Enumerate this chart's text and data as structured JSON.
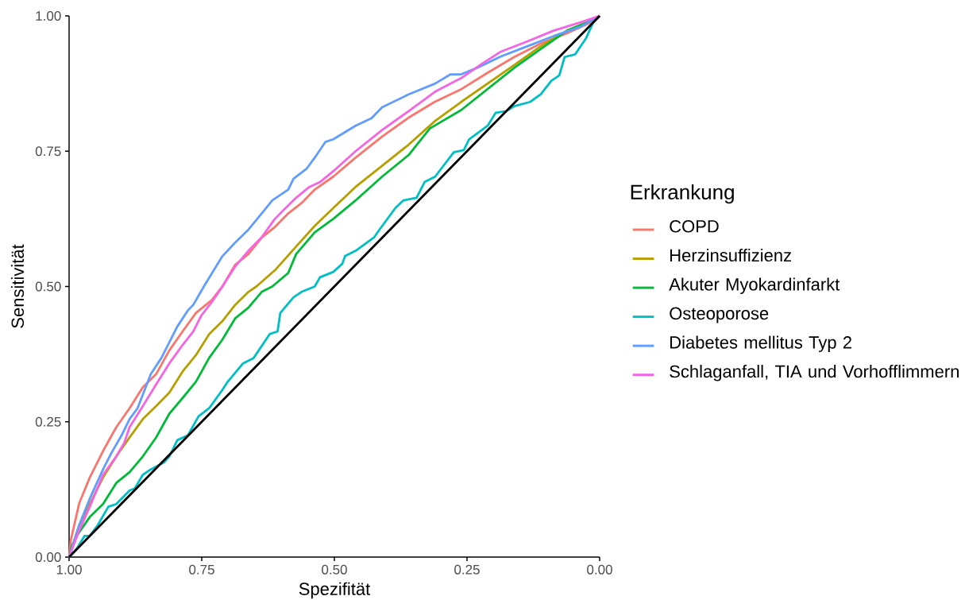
{
  "chart_data": {
    "type": "line",
    "xlabel": "Spezifität",
    "ylabel": "Sensitivität",
    "legend_title": "Erkrankung",
    "legend": "right",
    "xlim": [
      1,
      0
    ],
    "ylim": [
      0,
      1
    ],
    "xticks": [
      {
        "value": 1,
        "label": "1.00"
      },
      0.75,
      {
        "value": 0.5,
        "label": "0.50"
      },
      0.25,
      {
        "value": 0,
        "label": "0.00"
      }
    ],
    "yticks": [
      {
        "value": 0,
        "label": "0.00"
      },
      0.25,
      {
        "value": 0.5,
        "label": "0.50"
      },
      0.75,
      {
        "value": 1,
        "label": "1.00"
      }
    ],
    "series": [
      {
        "name": "COPD",
        "color": "#f8766d",
        "x": [
          1.0,
          0.997,
          0.981,
          0.961,
          0.936,
          0.911,
          0.886,
          0.861,
          0.836,
          0.811,
          0.786,
          0.761,
          0.731,
          0.711,
          0.687,
          0.662,
          0.637,
          0.612,
          0.587,
          0.562,
          0.537,
          0.502,
          0.46,
          0.41,
          0.36,
          0.311,
          0.26,
          0.211,
          0.161,
          0.111,
          0.061,
          0.012,
          0
        ],
        "values": [
          0,
          0.03,
          0.099,
          0.147,
          0.196,
          0.24,
          0.275,
          0.314,
          0.338,
          0.382,
          0.417,
          0.451,
          0.475,
          0.5,
          0.54,
          0.56,
          0.59,
          0.61,
          0.635,
          0.654,
          0.679,
          0.703,
          0.738,
          0.777,
          0.812,
          0.841,
          0.865,
          0.895,
          0.924,
          0.949,
          0.968,
          0.99,
          1
        ]
      },
      {
        "name": "Herzinsuffizienz",
        "color": "#b79f00",
        "x": [
          1.0,
          0.981,
          0.961,
          0.936,
          0.911,
          0.886,
          0.861,
          0.836,
          0.811,
          0.786,
          0.761,
          0.736,
          0.711,
          0.687,
          0.662,
          0.647,
          0.612,
          0.572,
          0.537,
          0.502,
          0.46,
          0.41,
          0.36,
          0.31,
          0.261,
          0.211,
          0.161,
          0.111,
          0.061,
          0.011,
          0
        ],
        "values": [
          0,
          0.059,
          0.098,
          0.147,
          0.186,
          0.221,
          0.255,
          0.279,
          0.304,
          0.343,
          0.373,
          0.412,
          0.436,
          0.466,
          0.49,
          0.5,
          0.53,
          0.574,
          0.612,
          0.645,
          0.684,
          0.723,
          0.762,
          0.806,
          0.841,
          0.875,
          0.909,
          0.944,
          0.973,
          0.993,
          1
        ]
      },
      {
        "name": "Akuter Myokardinfarkt",
        "color": "#00ba38",
        "x": [
          1.0,
          0.995,
          0.986,
          0.961,
          0.936,
          0.911,
          0.886,
          0.861,
          0.836,
          0.811,
          0.786,
          0.761,
          0.736,
          0.711,
          0.687,
          0.662,
          0.637,
          0.617,
          0.587,
          0.572,
          0.537,
          0.502,
          0.46,
          0.41,
          0.36,
          0.32,
          0.261,
          0.211,
          0.161,
          0.111,
          0.061,
          0.011,
          0
        ],
        "values": [
          0,
          0.02,
          0.039,
          0.074,
          0.098,
          0.137,
          0.157,
          0.186,
          0.221,
          0.265,
          0.294,
          0.324,
          0.368,
          0.402,
          0.441,
          0.461,
          0.49,
          0.5,
          0.525,
          0.56,
          0.6,
          0.625,
          0.659,
          0.703,
          0.743,
          0.792,
          0.826,
          0.865,
          0.904,
          0.939,
          0.973,
          0.993,
          1
        ]
      },
      {
        "name": "Osteoporose",
        "color": "#00bfc4",
        "x": [
          1.0,
          0.986,
          0.971,
          0.961,
          0.946,
          0.926,
          0.911,
          0.886,
          0.876,
          0.861,
          0.846,
          0.821,
          0.811,
          0.796,
          0.776,
          0.756,
          0.736,
          0.711,
          0.701,
          0.672,
          0.652,
          0.622,
          0.607,
          0.602,
          0.577,
          0.562,
          0.537,
          0.527,
          0.502,
          0.485,
          0.48,
          0.46,
          0.425,
          0.415,
          0.385,
          0.37,
          0.345,
          0.33,
          0.31,
          0.275,
          0.256,
          0.246,
          0.211,
          0.196,
          0.176,
          0.161,
          0.131,
          0.111,
          0.091,
          0.076,
          0.066,
          0.046,
          0.026,
          0.012,
          0
        ],
        "values": [
          0,
          0.015,
          0.039,
          0.039,
          0.059,
          0.093,
          0.098,
          0.123,
          0.127,
          0.152,
          0.162,
          0.175,
          0.186,
          0.216,
          0.225,
          0.26,
          0.275,
          0.309,
          0.324,
          0.358,
          0.368,
          0.412,
          0.417,
          0.451,
          0.48,
          0.49,
          0.5,
          0.517,
          0.527,
          0.542,
          0.556,
          0.566,
          0.591,
          0.605,
          0.645,
          0.659,
          0.664,
          0.693,
          0.703,
          0.748,
          0.752,
          0.772,
          0.797,
          0.821,
          0.824,
          0.833,
          0.841,
          0.855,
          0.88,
          0.89,
          0.924,
          0.929,
          0.958,
          0.988,
          1
        ]
      },
      {
        "name": "Diabetes mellitus  Typ 2",
        "color": "#619cff",
        "x": [
          1.0,
          0.981,
          0.961,
          0.936,
          0.921,
          0.901,
          0.886,
          0.871,
          0.846,
          0.826,
          0.811,
          0.796,
          0.776,
          0.766,
          0.746,
          0.711,
          0.687,
          0.662,
          0.637,
          0.617,
          0.587,
          0.577,
          0.552,
          0.537,
          0.517,
          0.502,
          0.46,
          0.43,
          0.41,
          0.36,
          0.31,
          0.281,
          0.261,
          0.231,
          0.186,
          0.136,
          0.086,
          0.036,
          0
        ],
        "values": [
          0,
          0.059,
          0.108,
          0.162,
          0.191,
          0.225,
          0.255,
          0.275,
          0.338,
          0.368,
          0.397,
          0.426,
          0.456,
          0.466,
          0.5,
          0.556,
          0.581,
          0.605,
          0.635,
          0.659,
          0.679,
          0.699,
          0.718,
          0.738,
          0.767,
          0.772,
          0.797,
          0.811,
          0.831,
          0.855,
          0.875,
          0.892,
          0.892,
          0.904,
          0.925,
          0.944,
          0.963,
          0.98,
          1
        ]
      },
      {
        "name": "Schlaganfall, TIA und Vorhofflimmern",
        "color": "#f564e3",
        "x": [
          1.0,
          0.981,
          0.961,
          0.936,
          0.911,
          0.896,
          0.886,
          0.861,
          0.836,
          0.811,
          0.786,
          0.766,
          0.751,
          0.731,
          0.711,
          0.687,
          0.662,
          0.637,
          0.612,
          0.597,
          0.572,
          0.547,
          0.527,
          0.502,
          0.46,
          0.41,
          0.36,
          0.31,
          0.261,
          0.221,
          0.186,
          0.136,
          0.086,
          0.036,
          0
        ],
        "values": [
          0,
          0.049,
          0.093,
          0.152,
          0.186,
          0.211,
          0.24,
          0.279,
          0.319,
          0.358,
          0.392,
          0.417,
          0.446,
          0.471,
          0.5,
          0.537,
          0.566,
          0.591,
          0.625,
          0.64,
          0.664,
          0.684,
          0.693,
          0.713,
          0.75,
          0.789,
          0.824,
          0.86,
          0.885,
          0.912,
          0.934,
          0.953,
          0.973,
          0.988,
          1
        ]
      },
      {
        "color": "#000000",
        "x": [
          1,
          0
        ],
        "values": [
          0,
          1
        ]
      }
    ]
  }
}
